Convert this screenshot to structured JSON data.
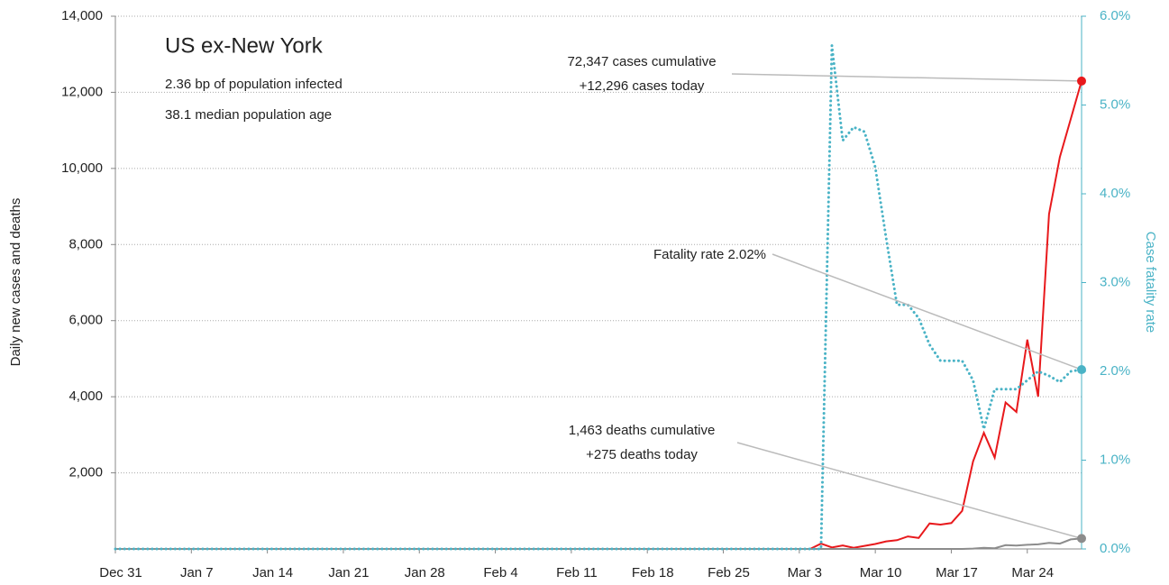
{
  "chart_data": {
    "type": "line",
    "title": "US ex-New York",
    "subtitle": [
      "2.36 bp of population infected",
      "38.1 median population age"
    ],
    "ylabel": "Daily new cases and deaths",
    "y2label": "Case fatality rate",
    "annotations": [
      {
        "lines": [
          "72,347 cases cumulative",
          "+12,296 cases today"
        ],
        "series": 0
      },
      {
        "lines": [
          "Fatality rate 2.02%"
        ],
        "series": 2
      },
      {
        "lines": [
          "1,463 deaths cumulative",
          "+275 deaths today"
        ],
        "series": 1
      }
    ],
    "categories": [
      "Dec 31",
      null,
      null,
      null,
      null,
      null,
      null,
      "Jan 7",
      null,
      null,
      null,
      null,
      null,
      null,
      "Jan 14",
      null,
      null,
      null,
      null,
      null,
      null,
      "Jan 21",
      null,
      null,
      null,
      null,
      null,
      null,
      "Jan 28",
      null,
      null,
      null,
      null,
      null,
      null,
      "Feb 4",
      null,
      null,
      null,
      null,
      null,
      null,
      "Feb 11",
      null,
      null,
      null,
      null,
      null,
      null,
      "Feb 18",
      null,
      null,
      null,
      null,
      null,
      null,
      "Feb 25",
      null,
      null,
      null,
      null,
      null,
      null,
      "Mar 3",
      null,
      null,
      null,
      null,
      null,
      null,
      "Mar 10",
      null,
      null,
      null,
      null,
      null,
      null,
      "Mar 17",
      null,
      null,
      null,
      null,
      null,
      null,
      "Mar 24",
      null,
      null,
      null,
      null,
      null
    ],
    "series": [
      {
        "name": "Cases",
        "color": "#e8191c",
        "values": [
          0,
          0,
          0,
          0,
          0,
          0,
          0,
          0,
          0,
          0,
          0,
          0,
          0,
          0,
          0,
          0,
          0,
          0,
          0,
          0,
          0,
          0,
          0,
          0,
          0,
          0,
          0,
          0,
          0,
          0,
          0,
          0,
          0,
          0,
          0,
          0,
          0,
          0,
          0,
          0,
          0,
          0,
          0,
          0,
          0,
          0,
          0,
          0,
          0,
          0,
          0,
          0,
          0,
          0,
          0,
          0,
          0,
          0,
          0,
          0,
          0,
          0,
          0,
          0,
          0,
          140,
          40,
          90,
          30,
          80,
          130,
          200,
          230,
          330,
          290,
          670,
          640,
          680,
          1000,
          2300,
          3050,
          2400,
          3850,
          3600,
          5500,
          4000,
          8800,
          10300,
          11300,
          12296
        ]
      },
      {
        "name": "Deaths",
        "color": "#8c8c8c",
        "values": [
          0,
          0,
          0,
          0,
          0,
          0,
          0,
          0,
          0,
          0,
          0,
          0,
          0,
          0,
          0,
          0,
          0,
          0,
          0,
          0,
          0,
          0,
          0,
          0,
          0,
          0,
          0,
          0,
          0,
          0,
          0,
          0,
          0,
          0,
          0,
          0,
          0,
          0,
          0,
          0,
          0,
          0,
          0,
          0,
          0,
          0,
          0,
          0,
          0,
          0,
          0,
          0,
          0,
          0,
          0,
          0,
          0,
          0,
          0,
          0,
          0,
          0,
          0,
          0,
          0,
          0,
          0,
          0,
          0,
          0,
          0,
          0,
          0,
          0,
          0,
          0,
          0,
          0,
          0,
          10,
          30,
          20,
          100,
          90,
          110,
          120,
          160,
          140,
          250,
          275
        ]
      },
      {
        "name": "Fatality rate",
        "color": "#4ab3c6",
        "axis": "y2",
        "values": [
          0,
          0,
          0,
          0,
          0,
          0,
          0,
          0,
          0,
          0,
          0,
          0,
          0,
          0,
          0,
          0,
          0,
          0,
          0,
          0,
          0,
          0,
          0,
          0,
          0,
          0,
          0,
          0,
          0,
          0,
          0,
          0,
          0,
          0,
          0,
          0,
          0,
          0,
          0,
          0,
          0,
          0,
          0,
          0,
          0,
          0,
          0,
          0,
          0,
          0,
          0,
          0,
          0,
          0,
          0,
          0,
          0,
          0,
          0,
          0,
          0,
          0,
          0,
          0,
          0,
          0,
          5.67,
          4.6,
          4.75,
          4.7,
          4.3,
          3.5,
          2.75,
          2.75,
          2.6,
          2.3,
          2.12,
          2.12,
          2.12,
          1.9,
          1.35,
          1.8,
          1.8,
          1.8,
          1.9,
          2.0,
          1.95,
          1.88,
          2.0,
          2.02
        ]
      }
    ],
    "ylim": [
      0,
      14000
    ],
    "yticks": [
      {
        "value": 2000,
        "label": "2,000"
      },
      {
        "value": 4000,
        "label": "4,000"
      },
      {
        "value": 6000,
        "label": "6,000"
      },
      {
        "value": 8000,
        "label": "8,000"
      },
      {
        "value": 10000,
        "label": "10,000"
      },
      {
        "value": 12000,
        "label": "12,000"
      },
      {
        "value": 14000,
        "label": "14,000"
      }
    ],
    "y2lim": [
      0,
      6
    ],
    "y2ticks": [
      {
        "value": 0,
        "label": "0.0%"
      },
      {
        "value": 1,
        "label": "1.0%"
      },
      {
        "value": 2,
        "label": "2.0%"
      },
      {
        "value": 3,
        "label": "3.0%"
      },
      {
        "value": 4,
        "label": "4.0%"
      },
      {
        "value": 5,
        "label": "5.0%"
      },
      {
        "value": 6,
        "label": "6.0%"
      }
    ],
    "grid": true
  }
}
